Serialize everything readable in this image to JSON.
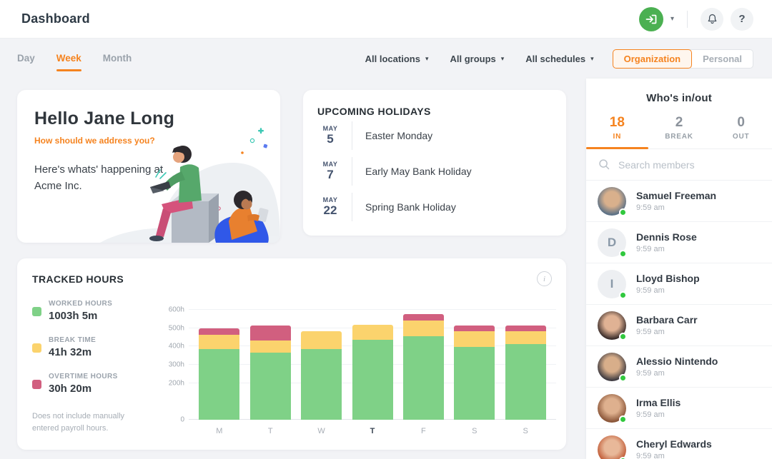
{
  "header": {
    "title": "Dashboard",
    "clock_button_icon": "sign-in-arrow",
    "dropdown_icon": "chevron-down",
    "notifications_icon": "bell",
    "help_icon": "question-mark"
  },
  "view_tabs": [
    {
      "label": "Day",
      "active": false
    },
    {
      "label": "Week",
      "active": true
    },
    {
      "label": "Month",
      "active": false
    }
  ],
  "filters": [
    {
      "label": "All locations"
    },
    {
      "label": "All groups"
    },
    {
      "label": "All schedules"
    }
  ],
  "scope_toggle": [
    {
      "label": "Organization",
      "active": true
    },
    {
      "label": "Personal",
      "active": false
    }
  ],
  "hello_card": {
    "title": "Hello Jane Long",
    "link": "How should we address you?",
    "message_line1": "Here's whats' happening at",
    "message_line2": "Acme Inc."
  },
  "holidays_card": {
    "title": "UPCOMING HOLIDAYS",
    "items": [
      {
        "month": "MAY",
        "day": "5",
        "name": "Easter Monday"
      },
      {
        "month": "MAY",
        "day": "7",
        "name": "Early May Bank Holiday"
      },
      {
        "month": "MAY",
        "day": "22",
        "name": "Spring Bank Holiday"
      }
    ]
  },
  "tracked_hours": {
    "title": "TRACKED HOURS",
    "info_icon": "circled-i",
    "legend": [
      {
        "label": "WORKED HOURS",
        "value": "1003h 5m",
        "color": "#7FD187"
      },
      {
        "label": "BREAK TIME",
        "value": "41h 32m",
        "color": "#FBD36D"
      },
      {
        "label": "OVERTIME HOURS",
        "value": "30h 20m",
        "color": "#D15F7F"
      }
    ],
    "footnote_line1": "Does not include manually",
    "footnote_line2": "entered payroll hours."
  },
  "chart_data": {
    "type": "bar",
    "stacked": true,
    "categories": [
      "M",
      "T",
      "W",
      "T",
      "F",
      "S",
      "S"
    ],
    "highlighted_category_index": 3,
    "series": [
      {
        "name": "Worked hours",
        "color": "#7FD187",
        "values": [
          385,
          368,
          385,
          438,
          455,
          398,
          412
        ]
      },
      {
        "name": "Break time",
        "color": "#FBD36D",
        "values": [
          78,
          65,
          100,
          82,
          85,
          87,
          73
        ]
      },
      {
        "name": "Overtime hours",
        "color": "#D15F7F",
        "values": [
          37,
          82,
          0,
          0,
          35,
          28,
          28
        ]
      }
    ],
    "yticks": [
      "600h",
      "500h",
      "400h",
      "300h",
      "200h",
      "0"
    ],
    "ylim": [
      0,
      600
    ],
    "grid": true,
    "legend_position": "left"
  },
  "sidebar": {
    "title": "Who's in/out",
    "tabs": [
      {
        "count": "18",
        "label": "IN",
        "active": true
      },
      {
        "count": "2",
        "label": "BREAK",
        "active": false
      },
      {
        "count": "0",
        "label": "OUT",
        "active": false
      }
    ],
    "search_placeholder": "Search members",
    "members": [
      {
        "name": "Samuel Freeman",
        "time": "9:59 am",
        "status": "in",
        "avatar": {
          "type": "photo",
          "inner": "#D9B08C",
          "outer": "#5A7086"
        }
      },
      {
        "name": "Dennis Rose",
        "time": "9:59 am",
        "status": "in",
        "avatar": {
          "type": "initial",
          "initial": "D",
          "bg": "#EDEFF2",
          "fg": "#8A99A8"
        }
      },
      {
        "name": "Lloyd Bishop",
        "time": "9:59 am",
        "status": "in",
        "avatar": {
          "type": "initial",
          "initial": "I",
          "bg": "#EDEFF2",
          "fg": "#8A99A8"
        }
      },
      {
        "name": "Barbara Carr",
        "time": "9:59 am",
        "status": "in",
        "avatar": {
          "type": "photo",
          "inner": "#E0B294",
          "outer": "#3A2D2B"
        }
      },
      {
        "name": "Alessio Nintendo",
        "time": "9:59 am",
        "status": "in",
        "avatar": {
          "type": "photo",
          "inner": "#D8AE8A",
          "outer": "#3D3A40"
        }
      },
      {
        "name": "Irma Ellis",
        "time": "9:59 am",
        "status": "in",
        "avatar": {
          "type": "photo",
          "inner": "#DEB08E",
          "outer": "#8A5538"
        }
      },
      {
        "name": "Cheryl Edwards",
        "time": "9:59 am",
        "status": "in",
        "avatar": {
          "type": "photo",
          "inner": "#E8B899",
          "outer": "#C05A35"
        }
      }
    ]
  },
  "colors": {
    "accent_orange": "#F5831F",
    "clock_in_green": "#4BB052",
    "status_dot_green": "#31C83E",
    "bar_green": "#7FD187",
    "bar_yellow": "#FBD36D",
    "bar_pink": "#D15F7F",
    "page_bg": "#F2F3F6",
    "holiday_date_blue": "#44536E"
  }
}
